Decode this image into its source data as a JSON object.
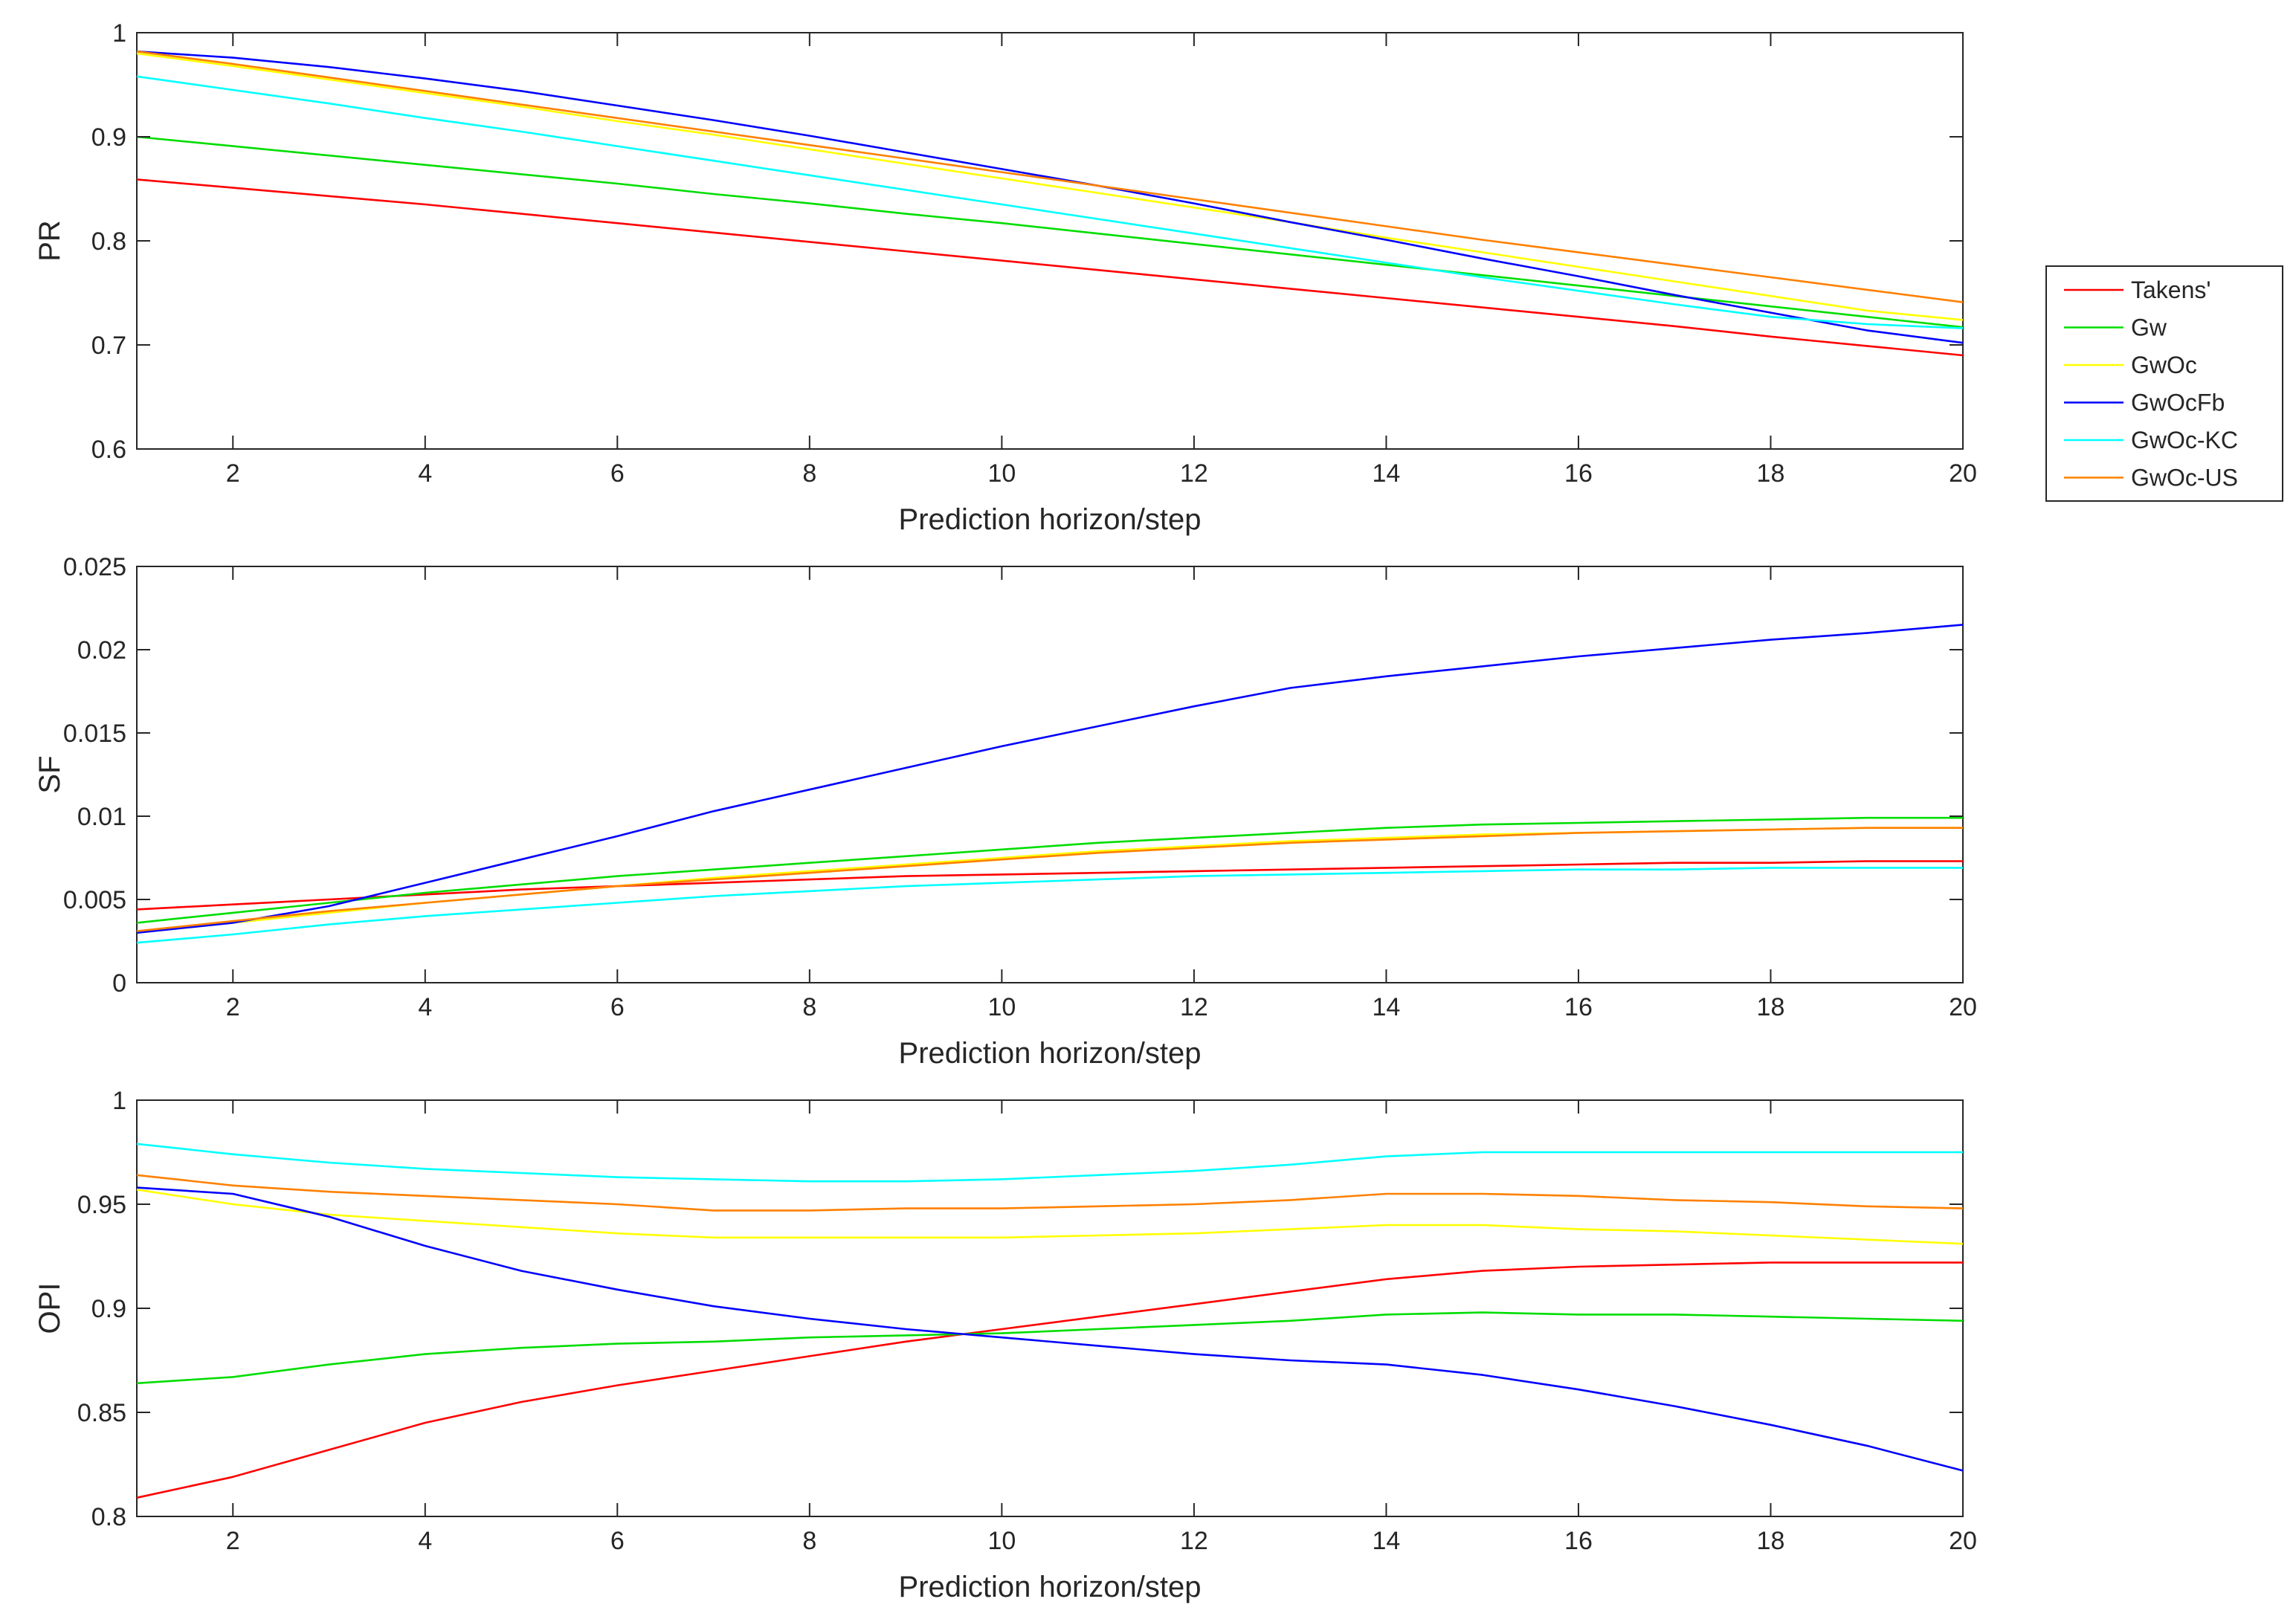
{
  "chart_data": [
    {
      "type": "line",
      "ylabel": "PR",
      "xlabel": "Prediction horizon/step",
      "xlim": [
        1,
        20
      ],
      "ylim": [
        0.6,
        1
      ],
      "xticks": [
        2,
        4,
        6,
        8,
        10,
        12,
        14,
        16,
        18,
        20
      ],
      "yticks": [
        "0.6",
        "0.7",
        "0.8",
        "0.9",
        "1"
      ],
      "x": [
        1,
        2,
        3,
        4,
        5,
        6,
        7,
        8,
        9,
        10,
        11,
        12,
        13,
        14,
        15,
        16,
        17,
        18,
        19,
        20
      ],
      "series": [
        {
          "name": "Takens'",
          "values": [
            0.859,
            0.851,
            0.843,
            0.835,
            0.826,
            0.817,
            0.808,
            0.799,
            0.79,
            0.781,
            0.772,
            0.763,
            0.754,
            0.745,
            0.736,
            0.727,
            0.718,
            0.708,
            0.699,
            0.69
          ]
        },
        {
          "name": "Gw",
          "values": [
            0.9,
            0.891,
            0.882,
            0.873,
            0.864,
            0.855,
            0.845,
            0.836,
            0.826,
            0.817,
            0.807,
            0.797,
            0.787,
            0.777,
            0.767,
            0.757,
            0.747,
            0.737,
            0.727,
            0.717
          ]
        },
        {
          "name": "GwOc",
          "values": [
            0.98,
            0.968,
            0.955,
            0.942,
            0.929,
            0.915,
            0.902,
            0.888,
            0.874,
            0.86,
            0.846,
            0.832,
            0.818,
            0.803,
            0.789,
            0.775,
            0.761,
            0.747,
            0.733,
            0.724
          ]
        },
        {
          "name": "GwOcFb",
          "values": [
            0.982,
            0.976,
            0.967,
            0.956,
            0.944,
            0.93,
            0.916,
            0.901,
            0.885,
            0.869,
            0.853,
            0.836,
            0.818,
            0.801,
            0.783,
            0.766,
            0.748,
            0.731,
            0.714,
            0.702
          ]
        },
        {
          "name": "GwOc-KC",
          "values": [
            0.958,
            0.945,
            0.932,
            0.918,
            0.905,
            0.891,
            0.877,
            0.863,
            0.849,
            0.835,
            0.821,
            0.807,
            0.793,
            0.779,
            0.765,
            0.752,
            0.739,
            0.727,
            0.72,
            0.716
          ]
        },
        {
          "name": "GwOc-US",
          "values": [
            0.982,
            0.97,
            0.957,
            0.944,
            0.931,
            0.918,
            0.905,
            0.892,
            0.879,
            0.866,
            0.853,
            0.84,
            0.827,
            0.814,
            0.801,
            0.789,
            0.777,
            0.765,
            0.753,
            0.741
          ]
        }
      ]
    },
    {
      "type": "line",
      "ylabel": "SF",
      "xlabel": "Prediction horizon/step",
      "xlim": [
        1,
        20
      ],
      "ylim": [
        0,
        0.025
      ],
      "xticks": [
        2,
        4,
        6,
        8,
        10,
        12,
        14,
        16,
        18,
        20
      ],
      "yticks": [
        "0",
        "0.005",
        "0.01",
        "0.015",
        "0.02",
        "0.025"
      ],
      "x": [
        1,
        2,
        3,
        4,
        5,
        6,
        7,
        8,
        9,
        10,
        11,
        12,
        13,
        14,
        15,
        16,
        17,
        18,
        19,
        20
      ],
      "series": [
        {
          "name": "Takens'",
          "values": [
            0.0044,
            0.0047,
            0.005,
            0.0053,
            0.0056,
            0.0058,
            0.006,
            0.0062,
            0.0064,
            0.0065,
            0.0066,
            0.0067,
            0.0068,
            0.0069,
            0.007,
            0.0071,
            0.0072,
            0.0072,
            0.0073,
            0.0073
          ]
        },
        {
          "name": "Gw",
          "values": [
            0.0036,
            0.0042,
            0.0048,
            0.0054,
            0.0059,
            0.0064,
            0.0068,
            0.0072,
            0.0076,
            0.008,
            0.0084,
            0.0087,
            0.009,
            0.0093,
            0.0095,
            0.0096,
            0.0097,
            0.0098,
            0.0099,
            0.0099
          ]
        },
        {
          "name": "GwOc",
          "values": [
            0.003,
            0.0036,
            0.0042,
            0.0048,
            0.0053,
            0.0058,
            0.0063,
            0.0067,
            0.0071,
            0.0075,
            0.0079,
            0.0082,
            0.0085,
            0.0087,
            0.0089,
            0.009,
            0.0091,
            0.0092,
            0.0093,
            0.0093
          ]
        },
        {
          "name": "GwOcFb",
          "values": [
            0.003,
            0.0036,
            0.0046,
            0.006,
            0.0074,
            0.0088,
            0.0103,
            0.0116,
            0.0129,
            0.0142,
            0.0154,
            0.0166,
            0.0177,
            0.0184,
            0.019,
            0.0196,
            0.0201,
            0.0206,
            0.021,
            0.0215
          ]
        },
        {
          "name": "GwOc-KC",
          "values": [
            0.0024,
            0.0029,
            0.0035,
            0.004,
            0.0044,
            0.0048,
            0.0052,
            0.0055,
            0.0058,
            0.006,
            0.0062,
            0.0064,
            0.0065,
            0.0066,
            0.0067,
            0.0068,
            0.0068,
            0.0069,
            0.0069,
            0.0069
          ]
        },
        {
          "name": "GwOc-US",
          "values": [
            0.0031,
            0.0037,
            0.0043,
            0.0048,
            0.0053,
            0.0058,
            0.0062,
            0.0066,
            0.007,
            0.0074,
            0.0078,
            0.0081,
            0.0084,
            0.0086,
            0.0088,
            0.009,
            0.0091,
            0.0092,
            0.0093,
            0.0093
          ]
        }
      ]
    },
    {
      "type": "line",
      "ylabel": "OPI",
      "xlabel": "Prediction horizon/step",
      "xlim": [
        1,
        20
      ],
      "ylim": [
        0.8,
        1
      ],
      "xticks": [
        2,
        4,
        6,
        8,
        10,
        12,
        14,
        16,
        18,
        20
      ],
      "yticks": [
        "0.8",
        "0.85",
        "0.9",
        "0.95",
        "1"
      ],
      "x": [
        1,
        2,
        3,
        4,
        5,
        6,
        7,
        8,
        9,
        10,
        11,
        12,
        13,
        14,
        15,
        16,
        17,
        18,
        19,
        20
      ],
      "series": [
        {
          "name": "Takens'",
          "values": [
            0.809,
            0.819,
            0.832,
            0.845,
            0.855,
            0.863,
            0.87,
            0.877,
            0.884,
            0.89,
            0.896,
            0.902,
            0.908,
            0.914,
            0.918,
            0.92,
            0.921,
            0.922,
            0.922,
            0.922
          ]
        },
        {
          "name": "Gw",
          "values": [
            0.864,
            0.867,
            0.873,
            0.878,
            0.881,
            0.883,
            0.884,
            0.886,
            0.887,
            0.888,
            0.89,
            0.892,
            0.894,
            0.897,
            0.898,
            0.897,
            0.897,
            0.896,
            0.895,
            0.894
          ]
        },
        {
          "name": "GwOc",
          "values": [
            0.957,
            0.95,
            0.945,
            0.942,
            0.939,
            0.936,
            0.934,
            0.934,
            0.934,
            0.934,
            0.935,
            0.936,
            0.938,
            0.94,
            0.94,
            0.938,
            0.937,
            0.935,
            0.933,
            0.931
          ]
        },
        {
          "name": "GwOcFb",
          "values": [
            0.958,
            0.955,
            0.944,
            0.93,
            0.918,
            0.909,
            0.901,
            0.895,
            0.89,
            0.886,
            0.882,
            0.878,
            0.875,
            0.873,
            0.868,
            0.861,
            0.853,
            0.844,
            0.834,
            0.822
          ]
        },
        {
          "name": "GwOc-KC",
          "values": [
            0.979,
            0.974,
            0.97,
            0.967,
            0.965,
            0.963,
            0.962,
            0.961,
            0.961,
            0.962,
            0.964,
            0.966,
            0.969,
            0.973,
            0.975,
            0.975,
            0.975,
            0.975,
            0.975,
            0.975
          ]
        },
        {
          "name": "GwOc-US",
          "values": [
            0.964,
            0.959,
            0.956,
            0.954,
            0.952,
            0.95,
            0.947,
            0.947,
            0.948,
            0.948,
            0.949,
            0.95,
            0.952,
            0.955,
            0.955,
            0.954,
            0.952,
            0.951,
            0.949,
            0.948
          ]
        }
      ]
    }
  ],
  "legend": {
    "entries": [
      "Takens'",
      "Gw",
      "GwOc",
      "GwOcFb",
      "GwOc-KC",
      "GwOc-US"
    ],
    "colors": [
      "#ff0000",
      "#00dd00",
      "#ffff00",
      "#0000ff",
      "#00ffff",
      "#ff8000"
    ],
    "position": "right, beside top panel"
  }
}
